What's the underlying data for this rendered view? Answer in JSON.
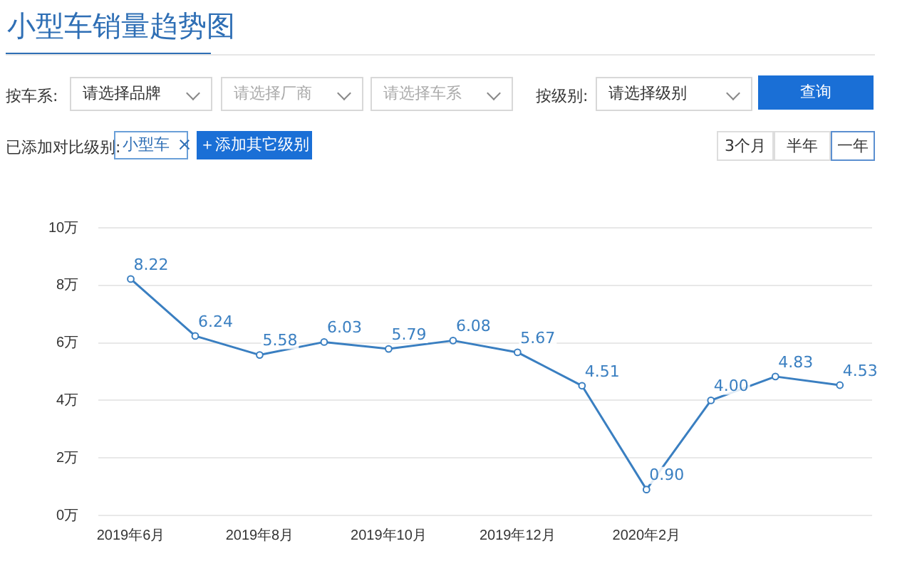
{
  "chart_data": {
    "type": "line",
    "title": "小型车销量趋势图",
    "categories": [
      "2019年6月",
      null,
      "2019年8月",
      null,
      "2019年10月",
      null,
      "2019年12月",
      null,
      "2020年2月",
      null,
      null,
      null
    ],
    "series": [
      {
        "color": "#3a7fc1",
        "values": [
          8.22,
          6.24,
          5.58,
          6.03,
          5.79,
          6.08,
          5.67,
          4.51,
          0.9,
          4.0,
          4.83,
          4.53
        ],
        "value_labels": [
          "8.22",
          "6.24",
          "5.58",
          "6.03",
          "5.79",
          "6.08",
          "5.67",
          "4.51",
          "0.90",
          "4.00",
          "4.83",
          "4.53"
        ]
      }
    ],
    "ylim": [
      0,
      10
    ],
    "yticks": [
      {
        "value": 0,
        "label": "0万"
      },
      {
        "value": 2,
        "label": "2万"
      },
      {
        "value": 4,
        "label": "4万"
      },
      {
        "value": 6,
        "label": "6万"
      },
      {
        "value": 8,
        "label": "8万"
      },
      {
        "value": 10,
        "label": "10万"
      }
    ],
    "grid": "y",
    "legend": false,
    "marker": "circle",
    "line_style": "solid",
    "annotations": [
      "按车系:",
      "请选择品牌",
      "请选择厂商",
      "请选择车系",
      "按级别:",
      "请选择级别",
      "查询",
      "已添加对比级别:",
      "小型车",
      "＋添加其它级别",
      "3个月",
      "半年",
      "一年"
    ]
  }
}
